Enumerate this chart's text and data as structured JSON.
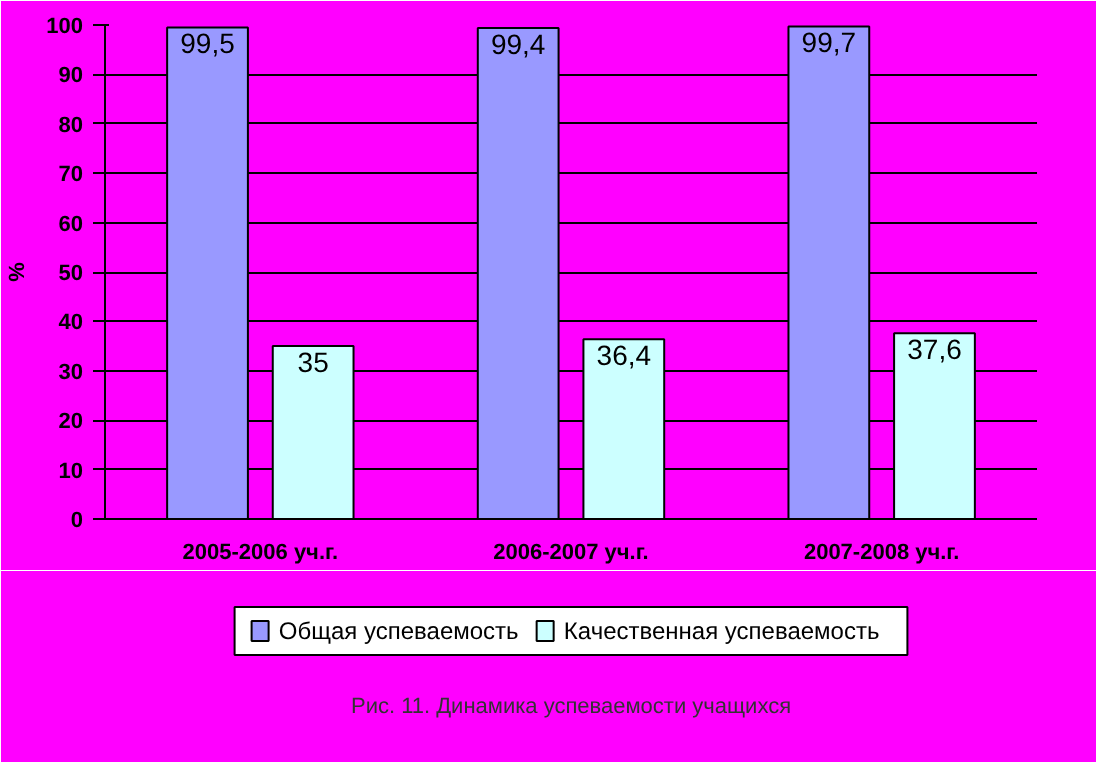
{
  "chart_data": {
    "type": "bar",
    "ylabel": "%",
    "categories": [
      "2005-2006 уч.г.",
      "2006-2007 уч.г.",
      "2007-2008 уч.г."
    ],
    "series": [
      {
        "name": "Общая успеваемость",
        "color": "#9999ff",
        "values": [
          99.5,
          99.4,
          99.7
        ],
        "value_labels": [
          "99,5",
          "99,4",
          "99,7"
        ]
      },
      {
        "name": "Качественная успеваемость",
        "color": "#ccffff",
        "values": [
          35,
          36.4,
          37.6
        ],
        "value_labels": [
          "35",
          "36,4",
          "37,6"
        ]
      }
    ],
    "ylim": [
      0,
      100
    ],
    "yticks": [
      0,
      10,
      20,
      30,
      40,
      50,
      60,
      70,
      80,
      90,
      100
    ],
    "grid": "y",
    "legend": "bottom",
    "annotations": [
      "Рис. 11. Динамика успеваемости учащихся"
    ]
  }
}
